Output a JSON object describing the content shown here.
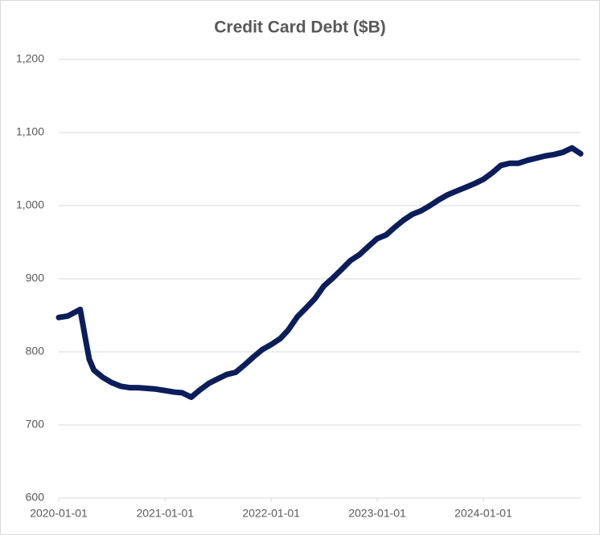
{
  "chart_data": {
    "type": "line",
    "title": "Credit Card Debt ($B)",
    "x": [
      "2020-01-01",
      "2020-02-01",
      "2020-03-15",
      "2020-04-01",
      "2020-04-15",
      "2020-05-01",
      "2020-06-01",
      "2020-07-01",
      "2020-08-01",
      "2020-09-01",
      "2020-10-01",
      "2020-11-01",
      "2020-12-01",
      "2021-01-01",
      "2021-02-01",
      "2021-03-01",
      "2021-04-01",
      "2021-05-01",
      "2021-06-01",
      "2021-07-01",
      "2021-08-01",
      "2021-09-01",
      "2021-10-01",
      "2021-11-01",
      "2021-12-01",
      "2022-01-01",
      "2022-02-01",
      "2022-03-01",
      "2022-04-01",
      "2022-05-01",
      "2022-06-01",
      "2022-07-01",
      "2022-08-01",
      "2022-09-01",
      "2022-10-01",
      "2022-11-01",
      "2022-12-01",
      "2023-01-01",
      "2023-02-01",
      "2023-03-01",
      "2023-04-01",
      "2023-05-01",
      "2023-06-01",
      "2023-07-01",
      "2023-08-01",
      "2023-09-01",
      "2023-10-01",
      "2023-11-01",
      "2023-12-01",
      "2024-01-01",
      "2024-02-01",
      "2024-03-01",
      "2024-04-01",
      "2024-05-01",
      "2024-06-01",
      "2024-07-01",
      "2024-08-01",
      "2024-09-01",
      "2024-10-01",
      "2024-11-01",
      "2024-12-01"
    ],
    "series": [
      {
        "name": "Credit Card Debt",
        "color": "#0b1d5a",
        "values": [
          847,
          849,
          858,
          820,
          790,
          775,
          765,
          758,
          753,
          751,
          751,
          750,
          749,
          747,
          745,
          744,
          738,
          748,
          757,
          763,
          769,
          772,
          782,
          793,
          803,
          810,
          818,
          830,
          848,
          860,
          873,
          890,
          901,
          913,
          925,
          933,
          944,
          955,
          960,
          970,
          980,
          988,
          993,
          1000,
          1008,
          1015,
          1020,
          1025,
          1030,
          1036,
          1045,
          1055,
          1058,
          1058,
          1062,
          1065,
          1068,
          1070,
          1073,
          1079,
          1071
        ]
      }
    ],
    "xlim": [
      "2020-01-01",
      "2024-12-01"
    ],
    "xticks": [
      "2020-01-01",
      "2021-01-01",
      "2022-01-01",
      "2023-01-01",
      "2024-01-01"
    ],
    "ylim": [
      600,
      1200
    ],
    "yticks": [
      600,
      700,
      800,
      900,
      {
        "value": 1000,
        "label": "1,000"
      },
      {
        "value": 1100,
        "label": "1,100"
      },
      {
        "value": 1200,
        "label": "1,200"
      }
    ],
    "grid": true
  }
}
